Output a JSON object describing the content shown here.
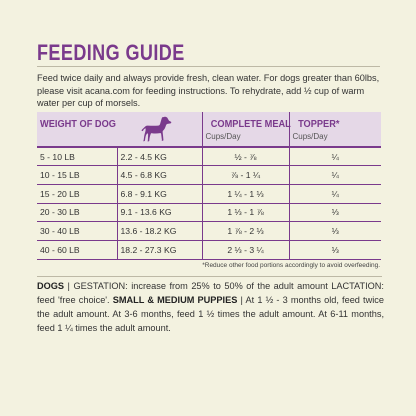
{
  "title": "Feeding Guide",
  "intro": "Feed twice daily and always provide fresh, clean water. For dogs greater than 60lbs, please visit acana.com for feeding instructions. To rehydrate, add ½ cup of warm water per cup of morsels.",
  "table": {
    "headers": {
      "weight": "Weight of Dog",
      "meal": "Complete Meal",
      "meal_unit": "Cups/Day",
      "topper": "Topper*",
      "topper_unit": "Cups/Day"
    },
    "rows": [
      {
        "lb": "5 - 10 LB",
        "kg": "2.2 - 4.5 KG",
        "meal": "½ - ⅞",
        "topper": "¼"
      },
      {
        "lb": "10 - 15 LB",
        "kg": "4.5 - 6.8 KG",
        "meal": "⅞ - 1 ¼",
        "topper": "¼"
      },
      {
        "lb": "15 - 20 LB",
        "kg": "6.8 - 9.1 KG",
        "meal": "1 ¼ - 1 ⅓",
        "topper": "¼"
      },
      {
        "lb": "20 - 30 LB",
        "kg": "9.1 - 13.6 KG",
        "meal": "1 ⅓ - 1 ⅞",
        "topper": "⅓"
      },
      {
        "lb": "30 - 40 LB",
        "kg": "13.6 - 18.2 KG",
        "meal": "1 ⅞ - 2 ⅓",
        "topper": "⅓"
      },
      {
        "lb": "40 - 60 LB",
        "kg": "18.2 - 27.3 KG",
        "meal": "2 ⅓ - 3 ¼",
        "topper": "⅓"
      }
    ]
  },
  "footnote": "*Reduce other food portions accordingly to avoid overfeeding.",
  "notes": {
    "dogs_label": "DOGS",
    "gestation": " | GESTATION: increase from 25% to 50% of the adult amount LACTATION: feed 'free choice'. ",
    "small_label": "SMALL & MEDIUM PUPPIES",
    "puppies": " | At 1 ½ - 3 months old, feed twice the adult amount. At 3-6 months, feed 1 ½ times the adult amount. At 6-11 months, feed 1 ¼ times the adult amount."
  },
  "icons": {
    "dog": "dog-silhouette-icon"
  },
  "colors": {
    "accent": "#7a3a8c",
    "header_bg": "#e5d8e7",
    "background": "#f3f2e0"
  }
}
